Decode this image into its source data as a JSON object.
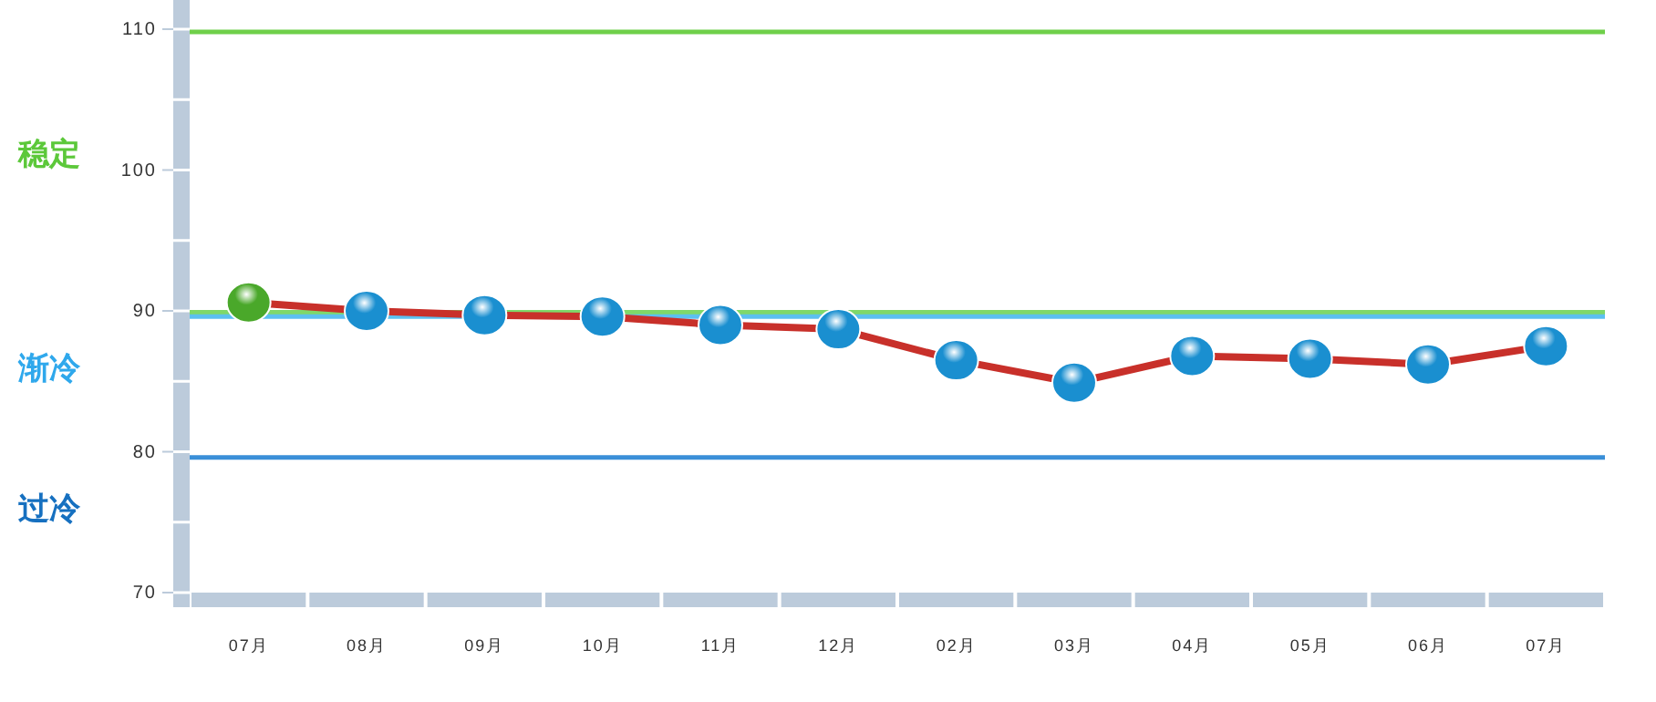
{
  "chart_data": {
    "type": "line",
    "categories": [
      "07月",
      "08月",
      "09月",
      "10月",
      "11月",
      "12月",
      "02月",
      "03月",
      "04月",
      "05月",
      "06月",
      "07月"
    ],
    "series": [
      {
        "color": "#c8302a",
        "colors": [
          "#4aa82a",
          "#1a8fd0",
          "#1a8fd0",
          "#1a8fd0",
          "#1a8fd0",
          "#1a8fd0",
          "#1a8fd0",
          "#1a8fd0",
          "#1a8fd0",
          "#1a8fd0",
          "#1a8fd0",
          "#1a8fd0"
        ],
        "values": [
          90.6,
          90,
          89.7,
          89.6,
          89,
          88.7,
          86.5,
          84.9,
          86.8,
          86.6,
          86.2,
          87.5
        ]
      }
    ],
    "ylim": [
      70,
      110
    ],
    "yticks": [
      70,
      80,
      90,
      100,
      110
    ],
    "marker": "circle",
    "line_style": "solid",
    "ref_lines": [
      {
        "axis": "y",
        "value": 109.8,
        "color": "#6fd04a"
      },
      {
        "axis": "y",
        "value": 89.9,
        "color": "#7fd86a"
      },
      {
        "axis": "y",
        "value": 89.6,
        "color": "#5cc0f0"
      },
      {
        "axis": "y",
        "value": 79.6,
        "color": "#3a8fd8"
      }
    ],
    "annotations": [
      "稳定",
      "渐冷",
      "过冷"
    ]
  }
}
